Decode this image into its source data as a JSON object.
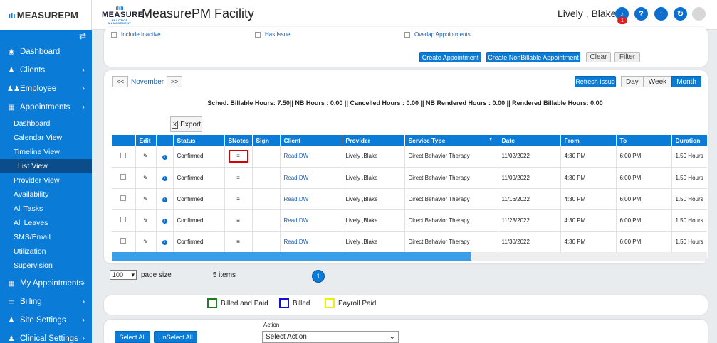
{
  "sidebar": {
    "logo": "MEASUREPM",
    "menu": [
      {
        "label": "Dashboard",
        "icon": "dashboard-icon",
        "chevron": false
      },
      {
        "label": "Clients",
        "icon": "user-icon",
        "chevron": true
      },
      {
        "label": "Employee",
        "icon": "users-icon",
        "chevron": true
      },
      {
        "label": "Appointments",
        "icon": "calendar-icon",
        "chevron": true
      }
    ],
    "sub_items": [
      "Dashboard",
      "Calendar View",
      "Timeline View",
      "List View",
      "Provider View",
      "Availability",
      "All Tasks",
      "All Leaves",
      "SMS/Email",
      "Utilization",
      "Supervision"
    ],
    "active_sub": "List View",
    "menu_after": [
      {
        "label": "My Appointments",
        "icon": "calendar-icon",
        "chevron": true
      },
      {
        "label": "Billing",
        "icon": "billing-icon",
        "chevron": true
      },
      {
        "label": "Site Settings",
        "icon": "user-icon",
        "chevron": true
      },
      {
        "label": "Clinical Settings",
        "icon": "user-icon",
        "chevron": true
      }
    ]
  },
  "header": {
    "brand_mark": "MEASURE",
    "brand_tagline": "PRACTICE MANAGEMENT",
    "title": "MeasurePM Facility",
    "user": "Lively , Blake",
    "notification_count": "1"
  },
  "filters": {
    "include_inactive": "Include Inactive",
    "has_issue": "Has Issue",
    "overlap": "Overlap Appointments",
    "create_appointment": "Create Appointment",
    "create_nonbillable": "Create NonBillable Appointment",
    "clear": "Clear",
    "filter": "Filter"
  },
  "calendar_nav": {
    "prev": "<<",
    "month": "November",
    "next": ">>",
    "refresh": "Refresh Issue",
    "views": [
      "Day",
      "Week",
      "Month"
    ],
    "active_view": "Month"
  },
  "summary": "Sched. Billable Hours: 7.50|| NB Hours : 0.00 || Cancelled Hours : 0.00 || NB Rendered Hours : 0.00 || Rendered Billable Hours: 0.00",
  "export_label": "Export",
  "table": {
    "columns": [
      "",
      "Edit",
      "",
      "Status",
      "SNotes",
      "Sign",
      "Client",
      "Provider",
      "Service Type",
      "Date",
      "From",
      "To",
      "Duration"
    ],
    "rows": [
      {
        "status": "Confirmed",
        "client": "Read,DW",
        "provider": "Lively ,Blake",
        "service": "Direct Behavior Therapy",
        "date": "11/02/2022",
        "from": "4:30 PM",
        "to": "6:00 PM",
        "duration": "1.50 Hours"
      },
      {
        "status": "Confirmed",
        "client": "Read,DW",
        "provider": "Lively ,Blake",
        "service": "Direct Behavior Therapy",
        "date": "11/09/2022",
        "from": "4:30 PM",
        "to": "6:00 PM",
        "duration": "1.50 Hours"
      },
      {
        "status": "Confirmed",
        "client": "Read,DW",
        "provider": "Lively ,Blake",
        "service": "Direct Behavior Therapy",
        "date": "11/16/2022",
        "from": "4:30 PM",
        "to": "6:00 PM",
        "duration": "1.50 Hours"
      },
      {
        "status": "Confirmed",
        "client": "Read,DW",
        "provider": "Lively ,Blake",
        "service": "Direct Behavior Therapy",
        "date": "11/23/2022",
        "from": "4:30 PM",
        "to": "6:00 PM",
        "duration": "1.50 Hours"
      },
      {
        "status": "Confirmed",
        "client": "Read,DW",
        "provider": "Lively ,Blake",
        "service": "Direct Behavior Therapy",
        "date": "11/30/2022",
        "from": "4:30 PM",
        "to": "6:00 PM",
        "duration": "1.50 Hours"
      }
    ]
  },
  "pager": {
    "page_size": "100",
    "page_size_label": "page size",
    "items": "5 items",
    "current_page": "1"
  },
  "legend": [
    {
      "label": "Billed and Paid",
      "color": "#1e7d1e"
    },
    {
      "label": "Billed",
      "color": "#1010e0"
    },
    {
      "label": "Payroll Paid",
      "color": "#f0f000"
    }
  ],
  "actions": {
    "select_all": "Select All",
    "unselect_all": "UnSelect All",
    "action_label": "Action",
    "action_select": "Select Action"
  }
}
